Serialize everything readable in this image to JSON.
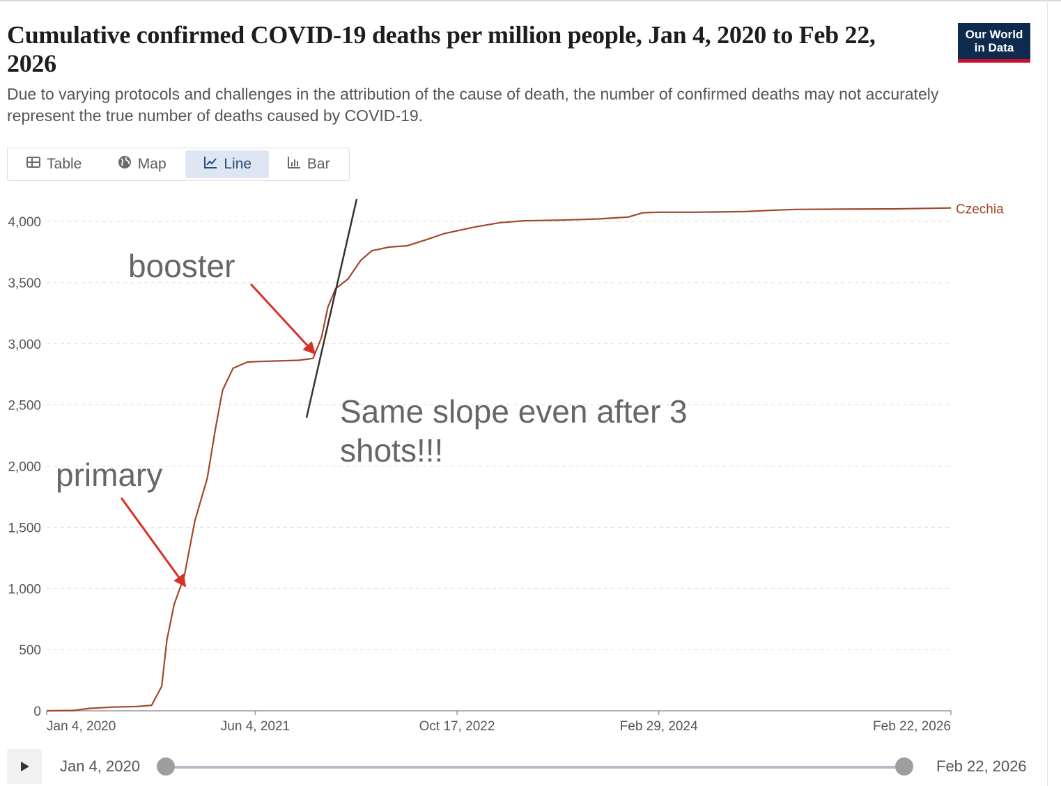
{
  "header": {
    "title": "Cumulative confirmed COVID-19 deaths per million people, Jan 4, 2020 to Feb 22, 2026",
    "subtitle": "Due to varying protocols and challenges in the attribution of the cause of death, the number of confirmed deaths may not accurately represent the true number of deaths caused by COVID-19.",
    "logo_line1": "Our World",
    "logo_line2": "in Data"
  },
  "tabs": [
    {
      "label": "Table",
      "icon": "table-icon",
      "active": false
    },
    {
      "label": "Map",
      "icon": "globe-icon",
      "active": false
    },
    {
      "label": "Line",
      "icon": "line-chart-icon",
      "active": true
    },
    {
      "label": "Bar",
      "icon": "bar-chart-icon",
      "active": false
    }
  ],
  "colors": {
    "series": "#a0472c",
    "accent": "#2b4a78",
    "arrow": "#d93025"
  },
  "annotations": {
    "booster": "booster",
    "primary": "primary",
    "slope_line1": "Same slope even after 3",
    "slope_line2": "shots!!!"
  },
  "chart_data": {
    "type": "line",
    "title": "Cumulative confirmed COVID-19 deaths per million people, Jan 4, 2020 to Feb 22, 2026",
    "xlabel": "",
    "ylabel": "",
    "ylim": [
      0,
      4000
    ],
    "yticks": [
      0,
      500,
      1000,
      1500,
      2000,
      2500,
      3000,
      3500,
      4000
    ],
    "ytick_labels": [
      "0",
      "500",
      "1,000",
      "1,500",
      "2,000",
      "2,500",
      "3,000",
      "3,500",
      "4,000"
    ],
    "xlim": [
      "2020-01-04",
      "2026-02-22"
    ],
    "xticks": [
      "2020-01-04",
      "2021-06-04",
      "2022-10-17",
      "2024-02-29",
      "2026-02-22"
    ],
    "xtick_labels": [
      "Jan 4, 2020",
      "Jun 4, 2021",
      "Oct 17, 2022",
      "Feb 29, 2024",
      "Feb 22, 2026"
    ],
    "grid": true,
    "series": [
      {
        "name": "Czechia",
        "x": [
          "2020-01-04",
          "2020-03-10",
          "2020-04-20",
          "2020-06-15",
          "2020-08-15",
          "2020-09-20",
          "2020-10-15",
          "2020-10-28",
          "2020-11-15",
          "2020-12-10",
          "2021-01-05",
          "2021-02-05",
          "2021-02-25",
          "2021-03-15",
          "2021-04-10",
          "2021-05-15",
          "2021-06-15",
          "2021-08-01",
          "2021-09-20",
          "2021-10-25",
          "2021-11-15",
          "2021-12-01",
          "2021-12-20",
          "2022-01-20",
          "2022-02-20",
          "2022-03-20",
          "2022-05-01",
          "2022-06-15",
          "2022-08-01",
          "2022-09-15",
          "2022-10-20",
          "2022-12-01",
          "2023-02-01",
          "2023-04-01",
          "2023-07-01",
          "2023-10-01",
          "2023-12-15",
          "2024-01-20",
          "2024-03-01",
          "2024-06-01",
          "2024-10-01",
          "2024-12-01",
          "2025-02-01",
          "2025-06-01",
          "2025-10-01",
          "2026-02-22"
        ],
        "y": [
          0,
          3,
          20,
          30,
          35,
          45,
          200,
          580,
          870,
          1100,
          1550,
          1900,
          2300,
          2620,
          2800,
          2850,
          2855,
          2860,
          2865,
          2880,
          3050,
          3300,
          3450,
          3530,
          3680,
          3760,
          3790,
          3800,
          3850,
          3900,
          3925,
          3955,
          3990,
          4005,
          4010,
          4020,
          4035,
          4070,
          4075,
          4075,
          4080,
          4090,
          4098,
          4100,
          4102,
          4110
        ]
      }
    ],
    "legend": "line-end-label"
  },
  "timeline": {
    "start_label": "Jan 4, 2020",
    "end_label": "Feb 22, 2026"
  }
}
